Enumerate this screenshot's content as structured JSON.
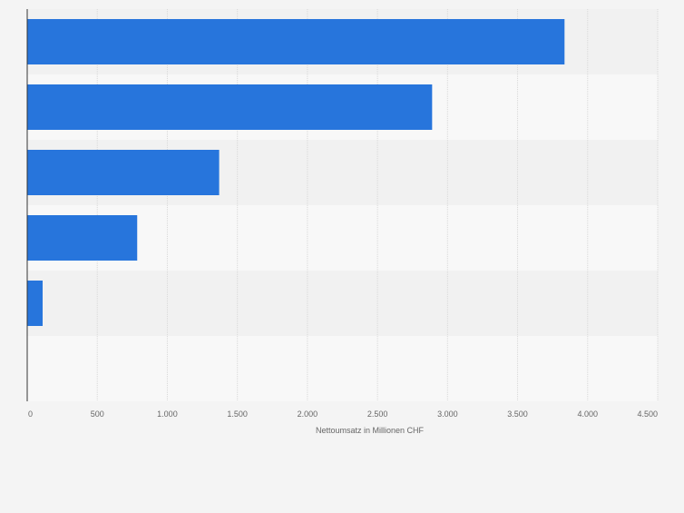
{
  "chart_data": {
    "type": "bar",
    "orientation": "horizontal",
    "categories": [
      "",
      "",
      "",
      "",
      "",
      ""
    ],
    "values": [
      3835,
      2890,
      1370,
      785,
      110,
      0
    ],
    "xlabel": "Nettoumsatz in Millionen CHF",
    "ylabel": "",
    "xlim": [
      0,
      4500
    ],
    "ticks": [
      0,
      500,
      1000,
      1500,
      2000,
      2500,
      3000,
      3500,
      4000,
      4500
    ],
    "tick_labels": [
      "0",
      "500",
      "1.000",
      "1.500",
      "2.000",
      "2.500",
      "3.000",
      "3.500",
      "4.000",
      "4.500"
    ],
    "grid": true,
    "colors": {
      "bar": "#2775dc",
      "band_even": "#f1f1f1",
      "band_odd": "#f8f8f8",
      "grid": "#d8d8d8",
      "axis": "#333333",
      "text": "#666666",
      "background": "#f4f4f4"
    }
  }
}
